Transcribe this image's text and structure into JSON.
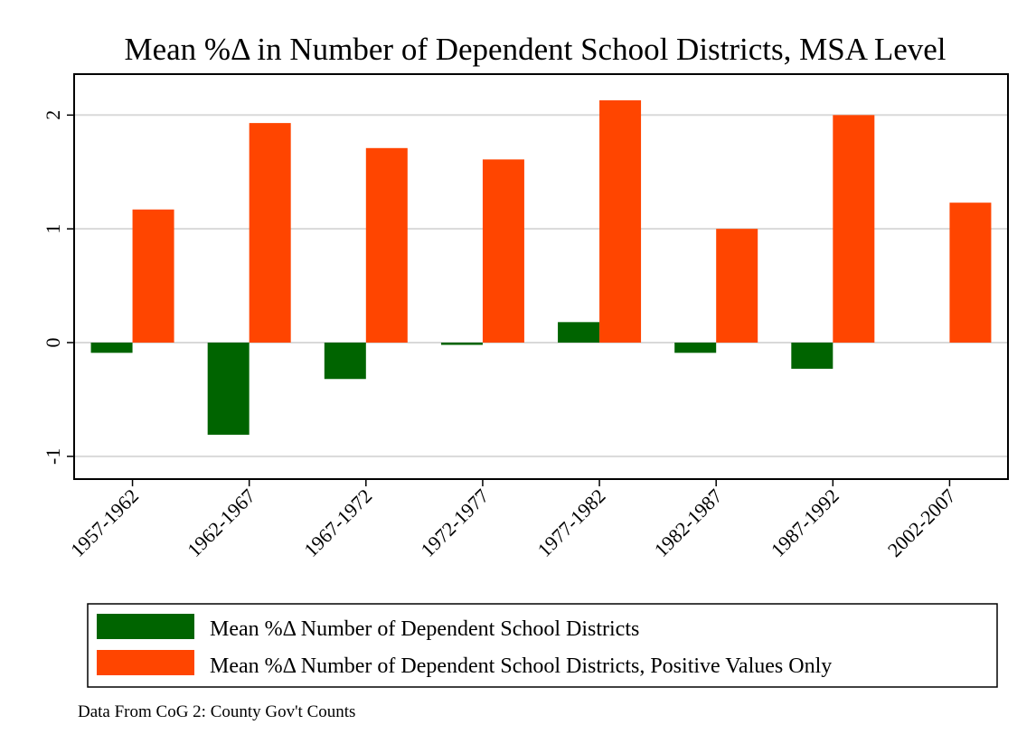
{
  "chart_data": {
    "type": "bar",
    "title": "Mean %Δ in Number of Dependent School Districts, MSA Level",
    "xlabel": "",
    "ylabel": "",
    "categories": [
      "1957-1962",
      "1962-1967",
      "1967-1972",
      "1972-1977",
      "1977-1982",
      "1982-1987",
      "1987-1992",
      "2002-2007"
    ],
    "series": [
      {
        "name": "Mean %Δ Number of Dependent School Districts",
        "color": "#006400",
        "values": [
          -0.09,
          -0.81,
          -0.32,
          -0.02,
          0.18,
          -0.09,
          -0.23,
          null
        ]
      },
      {
        "name": "Mean %Δ Number of Dependent School Districts, Positive Values Only",
        "color": "#ff4500",
        "values": [
          1.17,
          1.93,
          1.71,
          1.61,
          2.13,
          1.0,
          2.0,
          1.23
        ]
      }
    ],
    "yticks": [
      -1,
      0,
      1,
      2
    ],
    "ylim": [
      -1.2,
      2.36
    ],
    "grid": true,
    "legend_position": "bottom"
  },
  "note": "Data From CoG 2: County Gov't Counts"
}
